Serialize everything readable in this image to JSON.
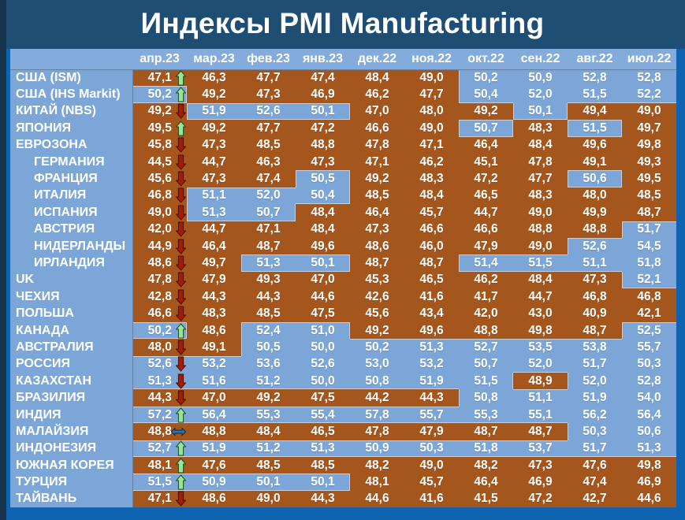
{
  "title": "Индексы PMI Manufacturing",
  "colors": {
    "page_bg": "#1F4E74",
    "left_edge": "#17334E",
    "frame_blue": "#1063B1",
    "header_bg": "#83ABDB",
    "name_column_bg": "#7CA6D8",
    "cell_at_or_above_50": "#7CA6D8",
    "cell_below_50": "#A5561D",
    "text": "#FFFFFF",
    "arrow_up_fill": "#97E597",
    "arrow_up_stroke": "#1C4A1C",
    "arrow_down_fill": "#A61C00",
    "arrow_down_stroke": "#4A0E00",
    "arrow_flat_fill": "#2E74B5",
    "arrow_flat_stroke": "#0E2A47",
    "blue_block_outline": "#C9CFD6"
  },
  "chart_data": {
    "type": "table",
    "title": "Индексы PMI Manufacturing",
    "threshold": 50,
    "color_rule": "value >= 50 light-blue, value < 50 brown",
    "categories": [
      "апр.23",
      "мар.23",
      "фев.23",
      "янв.23",
      "дек.22",
      "ноя.22",
      "окт.22",
      "сен.22",
      "авг.22",
      "июл.22"
    ],
    "rows": [
      {
        "name": "США (ISM)",
        "indent": false,
        "trend": "up",
        "values": [
          "47,1",
          "46,3",
          "47,7",
          "47,4",
          "48,4",
          "49,0",
          "50,2",
          "50,9",
          "52,8",
          "52,8"
        ]
      },
      {
        "name": "США (IHS Markit)",
        "indent": false,
        "trend": "up",
        "values": [
          "50,2",
          "49,2",
          "47,3",
          "46,9",
          "46,2",
          "47,7",
          "50,4",
          "52,0",
          "51,5",
          "52,2"
        ]
      },
      {
        "name": "КИТАЙ (NBS)",
        "indent": false,
        "trend": "down",
        "values": [
          "49,2",
          "51,9",
          "52,6",
          "50,1",
          "47,0",
          "48,0",
          "49,2",
          "50,1",
          "49,4",
          "49,0"
        ]
      },
      {
        "name": "ЯПОНИЯ",
        "indent": false,
        "trend": "up",
        "values": [
          "49,5",
          "49,2",
          "47,7",
          "47,2",
          "46,6",
          "49,0",
          "50,7",
          "48,3",
          "51,5",
          "49,7"
        ]
      },
      {
        "name": "ЕВРОЗОНА",
        "indent": false,
        "trend": "down",
        "values": [
          "45,8",
          "47,3",
          "48,5",
          "48,8",
          "47,8",
          "47,1",
          "46,4",
          "48,4",
          "49,6",
          "49,8"
        ]
      },
      {
        "name": "ГЕРМАНИЯ",
        "indent": true,
        "trend": "down",
        "values": [
          "44,5",
          "44,7",
          "46,3",
          "47,3",
          "47,1",
          "46,2",
          "45,1",
          "47,8",
          "49,1",
          "49,3"
        ]
      },
      {
        "name": "ФРАНЦИЯ",
        "indent": true,
        "trend": "down",
        "values": [
          "45,6",
          "47,3",
          "47,4",
          "50,5",
          "49,2",
          "48,3",
          "47,2",
          "47,7",
          "50,6",
          "49,5"
        ]
      },
      {
        "name": "ИТАЛИЯ",
        "indent": true,
        "trend": "down",
        "values": [
          "46,8",
          "51,1",
          "52,0",
          "50,4",
          "48,5",
          "48,4",
          "46,5",
          "48,3",
          "48,0",
          "48,5"
        ]
      },
      {
        "name": "ИСПАНИЯ",
        "indent": true,
        "trend": "down",
        "values": [
          "49,0",
          "51,3",
          "50,7",
          "48,4",
          "46,4",
          "45,7",
          "44,7",
          "49,0",
          "49,9",
          "48,7"
        ]
      },
      {
        "name": "АВСТРИЯ",
        "indent": true,
        "trend": "down",
        "values": [
          "42,0",
          "44,7",
          "47,1",
          "48,4",
          "47,3",
          "46,6",
          "46,6",
          "48,8",
          "48,8",
          "51,7"
        ]
      },
      {
        "name": "НИДЕРЛАНДЫ",
        "indent": true,
        "trend": "down",
        "values": [
          "44,9",
          "46,4",
          "48,7",
          "49,6",
          "48,6",
          "46,0",
          "47,9",
          "49,0",
          "52,6",
          "54,5"
        ]
      },
      {
        "name": "ИРЛАНДИЯ",
        "indent": true,
        "trend": "down",
        "values": [
          "48,6",
          "49,7",
          "51,3",
          "50,1",
          "48,7",
          "48,7",
          "51,4",
          "51,5",
          "51,1",
          "51,8"
        ]
      },
      {
        "name": "UK",
        "indent": false,
        "trend": "down",
        "values": [
          "47,8",
          "47,9",
          "49,3",
          "47,0",
          "45,3",
          "46,5",
          "46,2",
          "48,4",
          "47,3",
          "52,1"
        ]
      },
      {
        "name": "ЧЕХИЯ",
        "indent": false,
        "trend": "down",
        "values": [
          "42,8",
          "44,3",
          "44,3",
          "44,6",
          "42,6",
          "41,6",
          "41,7",
          "44,7",
          "46,8",
          "46,8"
        ]
      },
      {
        "name": "ПОЛЬША",
        "indent": false,
        "trend": "down",
        "values": [
          "46,6",
          "48,3",
          "48,5",
          "47,5",
          "45,6",
          "43,4",
          "42,0",
          "43,0",
          "40,9",
          "42,1"
        ]
      },
      {
        "name": "КАНАДА",
        "indent": false,
        "trend": "up",
        "values": [
          "50,2",
          "48,6",
          "52,4",
          "51,0",
          "49,2",
          "49,6",
          "48,8",
          "49,8",
          "48,7",
          "52,5"
        ]
      },
      {
        "name": "АВСТРАЛИЯ",
        "indent": false,
        "trend": "down",
        "values": [
          "48,0",
          "49,1",
          "50,5",
          "50,0",
          "50,2",
          "51,3",
          "52,7",
          "53,5",
          "53,8",
          "55,7"
        ]
      },
      {
        "name": "РОССИЯ",
        "indent": false,
        "trend": "down",
        "values": [
          "52,6",
          "53,2",
          "53,6",
          "52,6",
          "53,0",
          "53,2",
          "50,7",
          "52,0",
          "51,7",
          "50,3"
        ]
      },
      {
        "name": "КАЗАХСТАН",
        "indent": false,
        "trend": "down",
        "values": [
          "51,3",
          "51,6",
          "51,2",
          "50,0",
          "50,8",
          "51,9",
          "51,5",
          "48,9",
          "52,0",
          "52,8"
        ]
      },
      {
        "name": "БРАЗИЛИЯ",
        "indent": false,
        "trend": "down",
        "values": [
          "44,3",
          "47,0",
          "49,2",
          "47,5",
          "44,2",
          "44,3",
          "50,8",
          "51,1",
          "51,9",
          "54,0"
        ]
      },
      {
        "name": "ИНДИЯ",
        "indent": false,
        "trend": "up",
        "values": [
          "57,2",
          "56,4",
          "55,3",
          "55,4",
          "57,8",
          "55,7",
          "55,3",
          "55,1",
          "56,2",
          "56,4"
        ]
      },
      {
        "name": "МАЛАЙЗИЯ",
        "indent": false,
        "trend": "flat",
        "values": [
          "48,8",
          "48,8",
          "48,4",
          "46,5",
          "47,8",
          "47,9",
          "48,7",
          "48,7",
          "50,3",
          "50,6"
        ]
      },
      {
        "name": "ИНДОНЕЗИЯ",
        "indent": false,
        "trend": "up",
        "values": [
          "52,7",
          "51,9",
          "51,2",
          "51,3",
          "50,9",
          "50,3",
          "51,8",
          "53,7",
          "51,7",
          "51,3"
        ]
      },
      {
        "name": "ЮЖНАЯ КОРЕЯ",
        "indent": false,
        "trend": "up",
        "values": [
          "48,1",
          "47,6",
          "48,5",
          "48,5",
          "48,2",
          "49,0",
          "48,2",
          "47,3",
          "47,6",
          "49,8"
        ]
      },
      {
        "name": "ТУРЦИЯ",
        "indent": false,
        "trend": "up",
        "values": [
          "51,5",
          "50,9",
          "50,1",
          "50,1",
          "48,1",
          "45,7",
          "46,4",
          "46,9",
          "47,4",
          "46,9"
        ]
      },
      {
        "name": "ТАЙВАНЬ",
        "indent": false,
        "trend": "down",
        "values": [
          "47,1",
          "48,6",
          "49,0",
          "44,3",
          "44,6",
          "41,6",
          "41,5",
          "47,2",
          "42,7",
          "44,6"
        ]
      }
    ]
  }
}
